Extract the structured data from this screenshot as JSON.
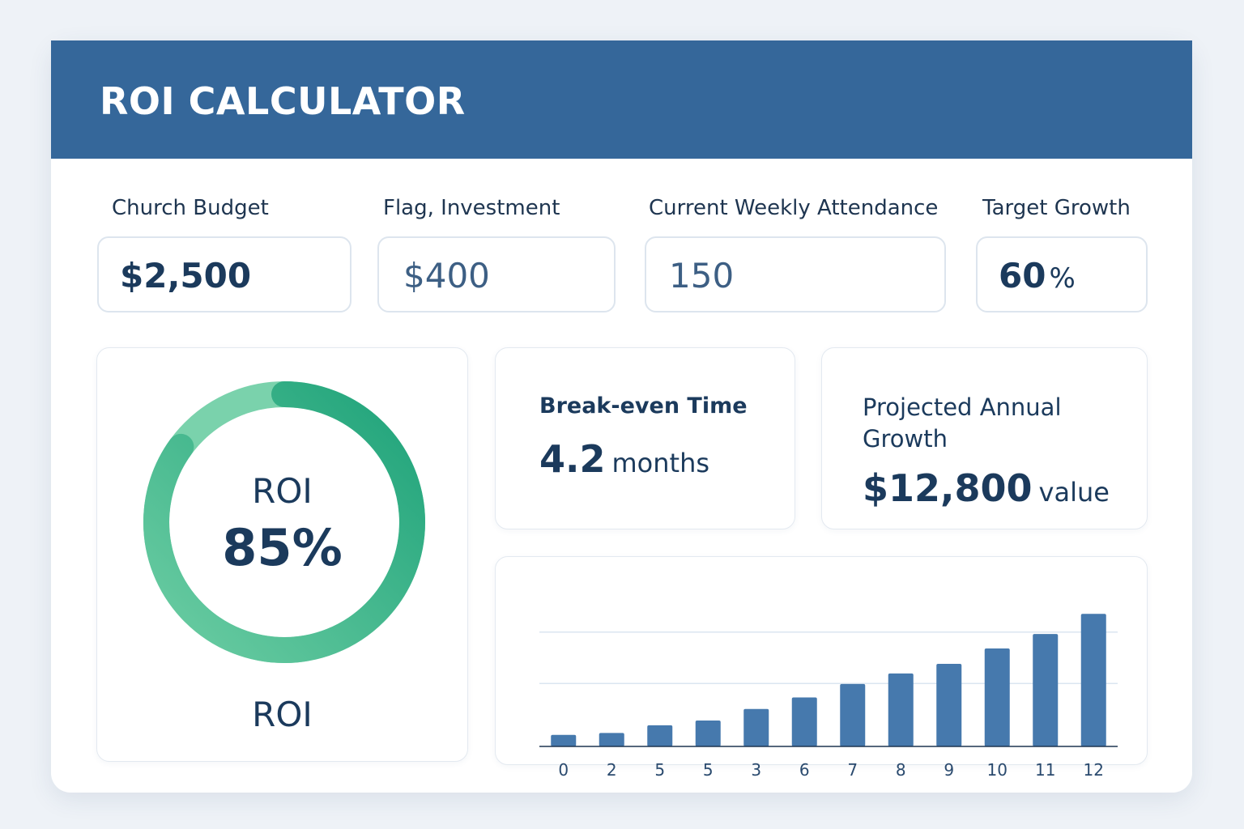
{
  "header": {
    "title": "ROI CALCULATOR"
  },
  "fields": [
    {
      "label": "Church Budget",
      "value": "$2,500"
    },
    {
      "label": "Flag, Investment",
      "value": "$400"
    },
    {
      "label": "Current Weekly Attendance",
      "value": "150"
    },
    {
      "label": "Target Growth",
      "value": "60",
      "suffix": "%"
    }
  ],
  "roi": {
    "label_top": "ROI",
    "value_text": "85%",
    "value": 85,
    "label_bottom": "ROI"
  },
  "break_even": {
    "title": "Break-even Time",
    "value": "4.2",
    "unit": "months"
  },
  "projected": {
    "title": "Projected Annual Growth",
    "value": "$12,800",
    "unit": "value"
  },
  "colors": {
    "header": "#35679a",
    "bar": "#4679ad",
    "ring_start": "#6ccda3",
    "ring_end": "#1fa37a"
  },
  "chart_data": {
    "type": "bar",
    "categories": [
      "0",
      "2",
      "5",
      "5",
      "3",
      "6",
      "7",
      "8",
      "9",
      "10",
      "11",
      "12"
    ],
    "values": [
      1.2,
      1.4,
      2.2,
      2.7,
      3.9,
      5.1,
      6.5,
      7.6,
      8.6,
      10.2,
      11.7,
      13.8
    ],
    "title": "",
    "xlabel": "",
    "ylabel": "",
    "ylim": [
      0,
      15
    ],
    "grid": true
  }
}
